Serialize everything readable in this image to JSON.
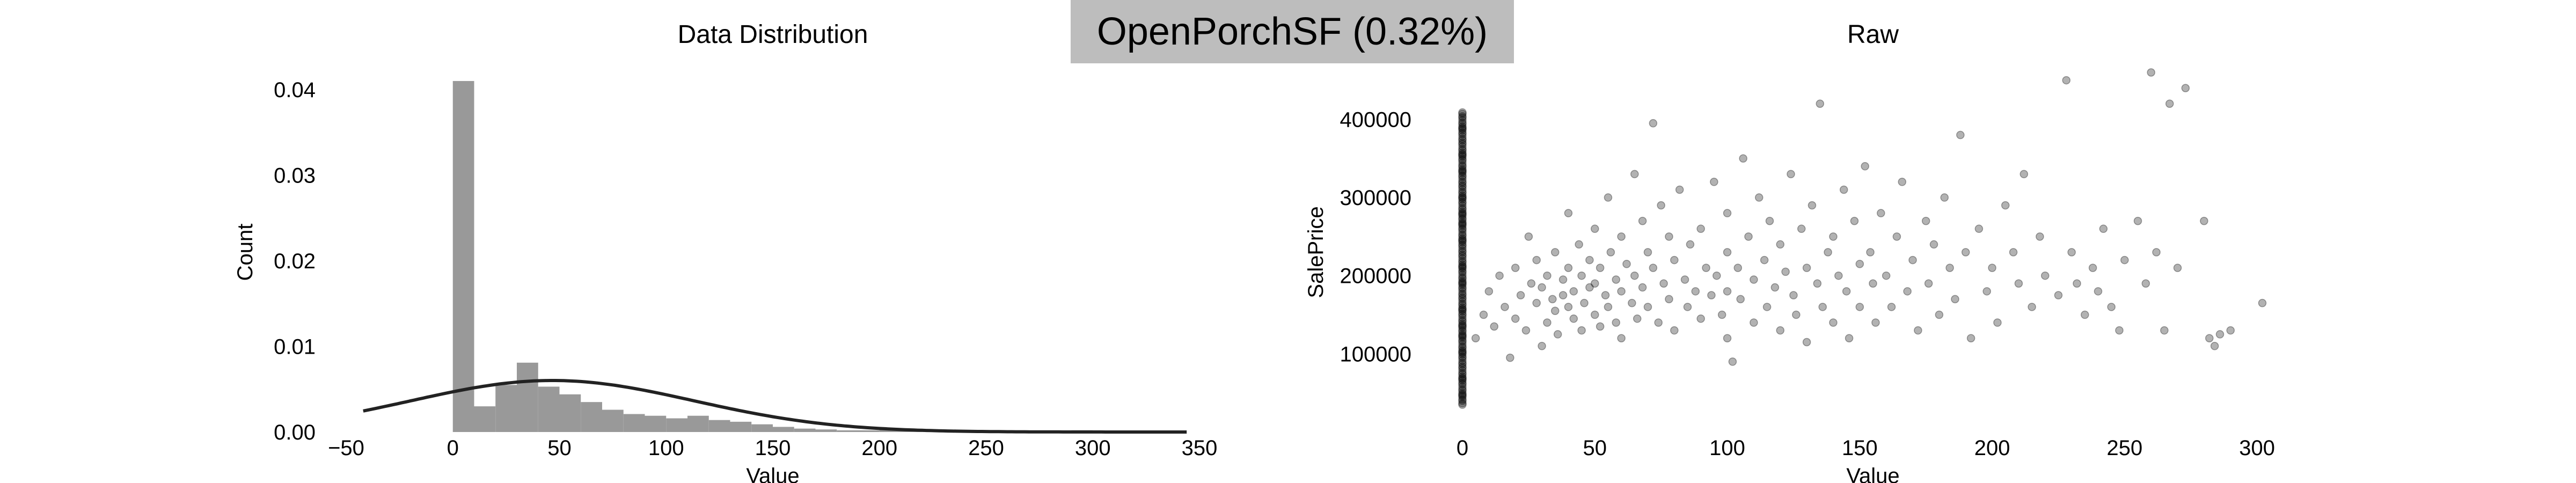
{
  "banner": {
    "text": "OpenPorchSF (0.32%)"
  },
  "colors": {
    "banner_bg": "#bdbdbd",
    "bars": "#999999",
    "curve": "#222222",
    "points": "#000000"
  },
  "chart_data": [
    {
      "type": "bar",
      "title": "Data Distribution",
      "xlabel": "Value",
      "ylabel": "Count",
      "xlim": [
        -50,
        350
      ],
      "ylim": [
        0,
        0.042
      ],
      "xticks": [
        "−50",
        "0",
        "50",
        "100",
        "150",
        "200",
        "250",
        "300",
        "350"
      ],
      "xtick_values": [
        -50,
        0,
        50,
        100,
        150,
        200,
        250,
        300,
        350
      ],
      "yticks": [
        "0.00",
        "0.01",
        "0.02",
        "0.03",
        "0.04"
      ],
      "ytick_values": [
        0,
        0.01,
        0.02,
        0.03,
        0.04
      ],
      "grid": false,
      "bin_width": 10,
      "bins": [
        [
          0,
          0.041
        ],
        [
          10,
          0.003
        ],
        [
          20,
          0.0055
        ],
        [
          30,
          0.0081
        ],
        [
          40,
          0.0053
        ],
        [
          50,
          0.0044
        ],
        [
          60,
          0.0035
        ],
        [
          70,
          0.0026
        ],
        [
          80,
          0.0021
        ],
        [
          90,
          0.0019
        ],
        [
          100,
          0.0016
        ],
        [
          110,
          0.0019
        ],
        [
          120,
          0.0014
        ],
        [
          130,
          0.0012
        ],
        [
          140,
          0.0009
        ],
        [
          150,
          0.0006
        ],
        [
          160,
          0.0004
        ],
        [
          170,
          0.0003
        ],
        [
          180,
          0.0002
        ],
        [
          190,
          0.0002
        ],
        [
          200,
          0.0004
        ],
        [
          210,
          0.0003
        ],
        [
          220,
          0.0002
        ],
        [
          230,
          0.0002
        ],
        [
          240,
          0.0002
        ],
        [
          250,
          0.0001
        ],
        [
          260,
          0.0002
        ],
        [
          270,
          0.0001
        ],
        [
          280,
          0.0001
        ],
        [
          290,
          0.0002
        ],
        [
          300,
          0.0001
        ]
      ],
      "fit_curve": {
        "type": "normal",
        "mean": 46.7,
        "std": 66.3,
        "x_range": [
          -42,
          345
        ]
      }
    },
    {
      "type": "scatter",
      "title": "Raw",
      "xlabel": "Value",
      "ylabel": "SalePrice",
      "xlim": [
        0,
        310
      ],
      "ylim": [
        0,
        460000
      ],
      "xticks": [
        "0",
        "50",
        "100",
        "150",
        "200",
        "250",
        "300"
      ],
      "xtick_values": [
        0,
        50,
        100,
        150,
        200,
        250,
        300
      ],
      "yticks": [
        "100000",
        "200000",
        "300000",
        "400000"
      ],
      "ytick_values": [
        100000,
        200000,
        300000,
        400000
      ],
      "grid": false,
      "zero_column": {
        "x": 0,
        "y_range": [
          35000,
          410000
        ],
        "count": 160
      },
      "points": [
        [
          5,
          120000
        ],
        [
          8,
          150000
        ],
        [
          10,
          180000
        ],
        [
          12,
          135000
        ],
        [
          14,
          200000
        ],
        [
          16,
          160000
        ],
        [
          18,
          95000
        ],
        [
          20,
          210000
        ],
        [
          20,
          145000
        ],
        [
          22,
          175000
        ],
        [
          24,
          130000
        ],
        [
          25,
          250000
        ],
        [
          26,
          190000
        ],
        [
          28,
          165000
        ],
        [
          28,
          220000
        ],
        [
          30,
          110000
        ],
        [
          30,
          185000
        ],
        [
          32,
          140000
        ],
        [
          32,
          200000
        ],
        [
          34,
          170000
        ],
        [
          35,
          230000
        ],
        [
          35,
          155000
        ],
        [
          36,
          125000
        ],
        [
          38,
          195000
        ],
        [
          38,
          175000
        ],
        [
          40,
          160000
        ],
        [
          40,
          210000
        ],
        [
          40,
          280000
        ],
        [
          42,
          145000
        ],
        [
          42,
          180000
        ],
        [
          44,
          240000
        ],
        [
          45,
          130000
        ],
        [
          45,
          200000
        ],
        [
          46,
          165000
        ],
        [
          48,
          220000
        ],
        [
          48,
          185000
        ],
        [
          50,
          150000
        ],
        [
          50,
          260000
        ],
        [
          50,
          190000
        ],
        [
          52,
          135000
        ],
        [
          52,
          210000
        ],
        [
          54,
          175000
        ],
        [
          55,
          300000
        ],
        [
          55,
          160000
        ],
        [
          56,
          230000
        ],
        [
          58,
          195000
        ],
        [
          58,
          140000
        ],
        [
          60,
          250000
        ],
        [
          60,
          180000
        ],
        [
          60,
          120000
        ],
        [
          62,
          215000
        ],
        [
          64,
          165000
        ],
        [
          65,
          330000
        ],
        [
          65,
          200000
        ],
        [
          66,
          145000
        ],
        [
          68,
          270000
        ],
        [
          68,
          185000
        ],
        [
          70,
          230000
        ],
        [
          70,
          160000
        ],
        [
          72,
          395000
        ],
        [
          72,
          210000
        ],
        [
          74,
          140000
        ],
        [
          75,
          290000
        ],
        [
          76,
          190000
        ],
        [
          78,
          250000
        ],
        [
          78,
          170000
        ],
        [
          80,
          220000
        ],
        [
          80,
          130000
        ],
        [
          82,
          310000
        ],
        [
          84,
          195000
        ],
        [
          85,
          160000
        ],
        [
          86,
          240000
        ],
        [
          88,
          180000
        ],
        [
          90,
          260000
        ],
        [
          90,
          145000
        ],
        [
          92,
          210000
        ],
        [
          94,
          175000
        ],
        [
          95,
          320000
        ],
        [
          96,
          200000
        ],
        [
          98,
          150000
        ],
        [
          100,
          280000
        ],
        [
          100,
          230000
        ],
        [
          100,
          180000
        ],
        [
          100,
          120000
        ],
        [
          102,
          90000
        ],
        [
          104,
          210000
        ],
        [
          105,
          170000
        ],
        [
          106,
          350000
        ],
        [
          108,
          250000
        ],
        [
          110,
          140000
        ],
        [
          110,
          195000
        ],
        [
          112,
          300000
        ],
        [
          114,
          220000
        ],
        [
          115,
          160000
        ],
        [
          116,
          270000
        ],
        [
          118,
          185000
        ],
        [
          120,
          240000
        ],
        [
          120,
          130000
        ],
        [
          122,
          205000
        ],
        [
          124,
          330000
        ],
        [
          125,
          175000
        ],
        [
          126,
          150000
        ],
        [
          128,
          260000
        ],
        [
          130,
          210000
        ],
        [
          130,
          115000
        ],
        [
          132,
          290000
        ],
        [
          134,
          190000
        ],
        [
          135,
          420000
        ],
        [
          136,
          160000
        ],
        [
          138,
          230000
        ],
        [
          140,
          250000
        ],
        [
          140,
          140000
        ],
        [
          142,
          200000
        ],
        [
          144,
          310000
        ],
        [
          145,
          180000
        ],
        [
          146,
          120000
        ],
        [
          148,
          270000
        ],
        [
          150,
          215000
        ],
        [
          150,
          160000
        ],
        [
          152,
          340000
        ],
        [
          154,
          230000
        ],
        [
          155,
          190000
        ],
        [
          156,
          140000
        ],
        [
          158,
          280000
        ],
        [
          160,
          200000
        ],
        [
          162,
          160000
        ],
        [
          164,
          250000
        ],
        [
          166,
          320000
        ],
        [
          168,
          180000
        ],
        [
          170,
          220000
        ],
        [
          172,
          130000
        ],
        [
          175,
          270000
        ],
        [
          176,
          190000
        ],
        [
          178,
          240000
        ],
        [
          180,
          150000
        ],
        [
          182,
          300000
        ],
        [
          184,
          210000
        ],
        [
          186,
          170000
        ],
        [
          188,
          380000
        ],
        [
          190,
          230000
        ],
        [
          192,
          120000
        ],
        [
          195,
          260000
        ],
        [
          198,
          180000
        ],
        [
          200,
          210000
        ],
        [
          202,
          140000
        ],
        [
          205,
          290000
        ],
        [
          208,
          230000
        ],
        [
          210,
          190000
        ],
        [
          212,
          330000
        ],
        [
          215,
          160000
        ],
        [
          218,
          250000
        ],
        [
          220,
          200000
        ],
        [
          225,
          175000
        ],
        [
          228,
          450000
        ],
        [
          230,
          230000
        ],
        [
          232,
          190000
        ],
        [
          235,
          150000
        ],
        [
          238,
          210000
        ],
        [
          240,
          180000
        ],
        [
          242,
          260000
        ],
        [
          245,
          160000
        ],
        [
          248,
          130000
        ],
        [
          250,
          220000
        ],
        [
          255,
          270000
        ],
        [
          258,
          190000
        ],
        [
          260,
          460000
        ],
        [
          262,
          230000
        ],
        [
          265,
          130000
        ],
        [
          267,
          420000
        ],
        [
          270,
          210000
        ],
        [
          273,
          440000
        ],
        [
          280,
          270000
        ],
        [
          282,
          120000
        ],
        [
          284,
          110000
        ],
        [
          286,
          125000
        ],
        [
          290,
          130000
        ],
        [
          302,
          165000
        ]
      ]
    }
  ]
}
